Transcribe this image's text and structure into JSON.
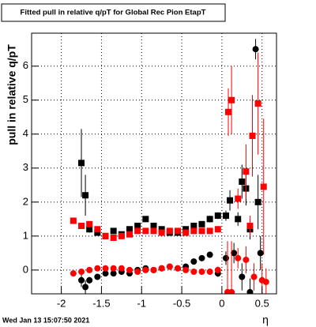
{
  "chart_data": {
    "type": "scatter",
    "title": "Fitted pull in relative q/pT for Global Rec Pion EtapT",
    "y_label": "pull in relative q/pT",
    "x_label": "η",
    "timestamp": "Wed Jan 13 15:07:50 2021",
    "xlim": [
      -2.37,
      0.68
    ],
    "ylim": [
      -0.7,
      6.97
    ],
    "xticks": [
      -2,
      -1.5,
      -1,
      -0.5,
      0,
      0.5
    ],
    "yticks": [
      0,
      1,
      2,
      3,
      4,
      5,
      6
    ],
    "grid": true,
    "series": [
      {
        "color": "#000000",
        "marker": "square",
        "x": [
          -1.75,
          -1.7,
          -1.65,
          -1.55,
          -1.45,
          -1.35,
          -1.25,
          -1.15,
          -1.05,
          -0.95,
          -0.85,
          -0.75,
          -0.65,
          -0.55,
          -0.45,
          -0.35,
          -0.25,
          -0.15,
          -0.05,
          0.05,
          0.1,
          0.2,
          0.25,
          0.3,
          0.35,
          0.45
        ],
        "values": [
          3.15,
          2.2,
          1.2,
          1.1,
          1.0,
          1.15,
          1.05,
          1.2,
          1.3,
          1.5,
          1.3,
          1.2,
          1.1,
          1.1,
          1.2,
          1.3,
          1.35,
          1.5,
          1.6,
          1.6,
          2.05,
          1.5,
          2.6,
          2.4,
          1.2,
          2.0
        ],
        "errors": [
          1.0,
          0.6,
          0.1,
          0.05,
          0.05,
          0.05,
          0.05,
          0.05,
          0.05,
          0.05,
          0.05,
          0.05,
          0.05,
          0.05,
          0.05,
          0.05,
          0.05,
          0.1,
          0.1,
          0.15,
          0.3,
          0.2,
          0.5,
          0.5,
          0.3,
          0.8
        ]
      },
      {
        "color": "#ff0000",
        "marker": "square",
        "x": [
          -1.85,
          -1.75,
          -1.65,
          -1.55,
          -1.45,
          -1.35,
          -1.25,
          -1.15,
          -1.05,
          -0.95,
          -0.85,
          -0.75,
          -0.65,
          -0.55,
          -0.45,
          -0.35,
          -0.25,
          -0.15,
          -0.05,
          0.08,
          0.12,
          0.2,
          0.3,
          0.35,
          0.38,
          0.45,
          0.52
        ],
        "values": [
          1.45,
          1.3,
          1.35,
          1.2,
          1.0,
          0.95,
          1.0,
          1.05,
          1.15,
          1.15,
          1.15,
          1.1,
          1.15,
          1.15,
          1.1,
          1.15,
          1.15,
          1.15,
          1.2,
          4.65,
          5.0,
          2.1,
          2.9,
          1.3,
          3.95,
          4.9,
          2.45
        ],
        "errors": [
          0.05,
          0.05,
          0.05,
          0.05,
          0.05,
          0.05,
          0.05,
          0.05,
          0.05,
          0.05,
          0.05,
          0.05,
          0.05,
          0.05,
          0.05,
          0.05,
          0.05,
          0.05,
          0.1,
          0.7,
          1.0,
          0.3,
          0.8,
          0.3,
          1.2,
          1.5,
          2.0
        ]
      },
      {
        "color": "#000000",
        "marker": "circle",
        "x": [
          -1.75,
          -1.7,
          -1.65,
          -1.55,
          -1.45,
          -1.35,
          -1.25,
          -1.15,
          -1.05,
          -0.95,
          -0.85,
          -0.75,
          -0.65,
          -0.55,
          -0.45,
          -0.35,
          -0.25,
          -0.15,
          -0.05,
          0.05,
          0.15,
          0.25,
          0.35,
          0.42,
          0.48
        ],
        "values": [
          -0.3,
          -0.5,
          -0.3,
          -0.2,
          -0.1,
          -0.1,
          -0.05,
          -0.1,
          0,
          0.05,
          0,
          0.05,
          0.1,
          0.05,
          0.1,
          0.25,
          0.35,
          0.45,
          -0.1,
          0.35,
          0.5,
          -0.2,
          -0.65,
          6.5,
          0.5
        ],
        "errors": [
          0.2,
          0.2,
          0.1,
          0.05,
          0.05,
          0.05,
          0.05,
          0.05,
          0.05,
          0.05,
          0.05,
          0.05,
          0.05,
          0.05,
          0.05,
          0.05,
          0.05,
          0.05,
          0.1,
          0.2,
          0.3,
          0.4,
          0.4,
          0.3,
          0.5
        ]
      },
      {
        "color": "#ff0000",
        "marker": "circle",
        "x": [
          -1.85,
          -1.75,
          -1.65,
          -1.55,
          -1.45,
          -1.35,
          -1.25,
          -1.15,
          -1.05,
          -0.95,
          -0.85,
          -0.75,
          -0.65,
          -0.55,
          -0.45,
          -0.35,
          -0.25,
          -0.15,
          -0.05,
          0.07,
          0.12,
          0.2,
          0.3,
          0.4,
          0.5,
          0.55
        ],
        "values": [
          -0.1,
          -0.05,
          0,
          0.05,
          0.05,
          0.05,
          0.05,
          0,
          -0.05,
          0,
          0,
          0.05,
          0.1,
          0.05,
          0,
          -0.05,
          -0.05,
          -0.05,
          0,
          -0.65,
          -0.65,
          0.35,
          0.3,
          -0.2,
          -0.3,
          -0.35
        ],
        "errors": [
          0.05,
          0.05,
          0.05,
          0.05,
          0.05,
          0.05,
          0.05,
          0.05,
          0.05,
          0.05,
          0.05,
          0.05,
          0.05,
          0.05,
          0.05,
          0.05,
          0.05,
          0.05,
          0.1,
          1.5,
          1.5,
          0.3,
          0.4,
          0.4,
          0.5,
          0.4
        ]
      }
    ]
  }
}
